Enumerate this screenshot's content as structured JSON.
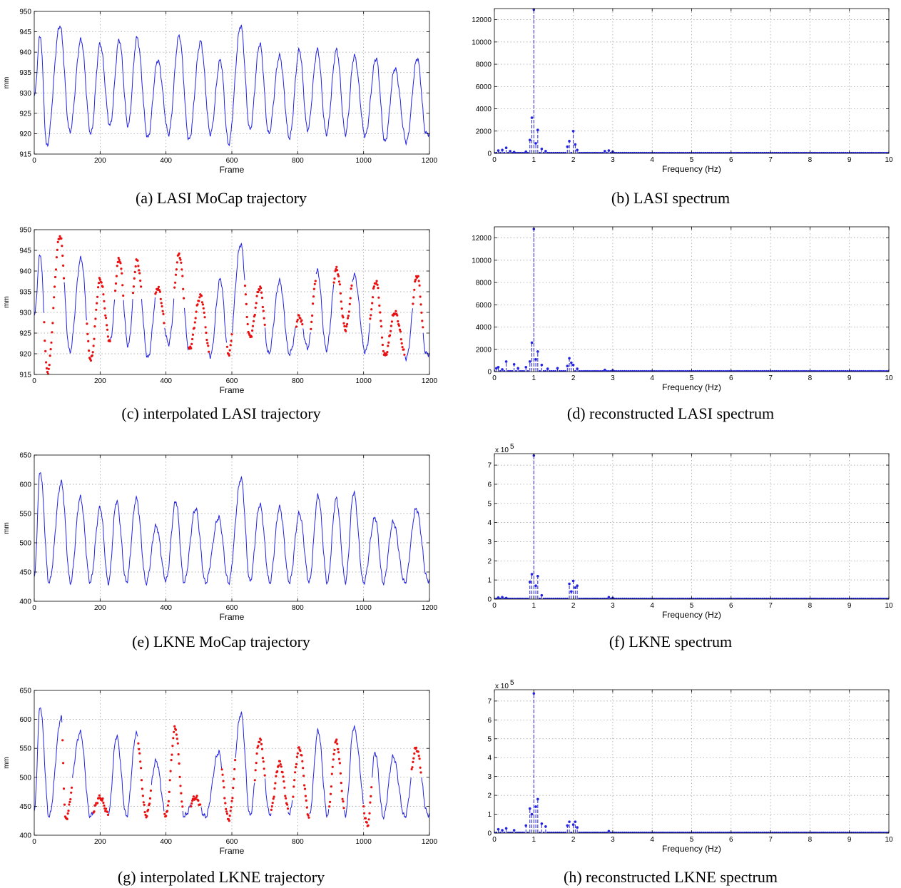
{
  "chart_data": [
    {
      "id": "a",
      "type": "line",
      "caption": "(a) LASI MoCap trajectory",
      "xlabel": "Frame",
      "ylabel": "mm",
      "xlim": [
        0,
        1200
      ],
      "ylim": [
        915,
        950
      ],
      "xticks": [
        0,
        200,
        400,
        600,
        800,
        1000,
        1200
      ],
      "yticks": [
        915,
        920,
        925,
        930,
        935,
        940,
        945,
        950
      ],
      "grid": true,
      "series_color": "#2323e0",
      "peaks": [
        [
          0,
          929
        ],
        [
          18,
          944
        ],
        [
          78,
          946.5
        ],
        [
          142,
          943
        ],
        [
          200,
          942
        ],
        [
          258,
          943
        ],
        [
          312,
          943.5
        ],
        [
          375,
          938
        ],
        [
          440,
          944
        ],
        [
          505,
          942.5
        ],
        [
          565,
          938
        ],
        [
          627,
          946.5
        ],
        [
          685,
          942
        ],
        [
          745,
          939
        ],
        [
          805,
          940.5
        ],
        [
          860,
          940.5
        ],
        [
          918,
          940.5
        ],
        [
          972,
          939
        ],
        [
          1038,
          938.5
        ],
        [
          1095,
          936
        ],
        [
          1163,
          938.5
        ]
      ],
      "troughs": [
        [
          38,
          917
        ],
        [
          108,
          920.5
        ],
        [
          172,
          920
        ],
        [
          230,
          922
        ],
        [
          285,
          922
        ],
        [
          345,
          919
        ],
        [
          408,
          920
        ],
        [
          470,
          918.5
        ],
        [
          535,
          920
        ],
        [
          590,
          917.5
        ],
        [
          655,
          921
        ],
        [
          712,
          920
        ],
        [
          775,
          919
        ],
        [
          830,
          921
        ],
        [
          887,
          920
        ],
        [
          945,
          920
        ],
        [
          1005,
          919.5
        ],
        [
          1065,
          918
        ],
        [
          1130,
          918
        ],
        [
          1190,
          920
        ]
      ]
    },
    {
      "id": "b",
      "type": "stem",
      "caption": "(b) LASI spectrum",
      "xlabel": "Frequency (Hz)",
      "ylabel": "",
      "xlim": [
        0,
        10
      ],
      "ylim": [
        0,
        13000
      ],
      "xticks": [
        0,
        1,
        2,
        3,
        4,
        5,
        6,
        7,
        8,
        9,
        10
      ],
      "xticklabels": [
        "0",
        "1",
        "2",
        "3",
        "4",
        "5",
        "6",
        "7",
        "8",
        "9",
        "10"
      ],
      "yticks": [
        0,
        2000,
        4000,
        6000,
        8000,
        10000,
        12000
      ],
      "yticklabels": [
        "0",
        "2000",
        "4000",
        "6000",
        "8000",
        "10000",
        "12000"
      ],
      "scale_label": "",
      "grid": true,
      "series_color": "#2323e0",
      "stems": [
        [
          0.1,
          250
        ],
        [
          0.2,
          300
        ],
        [
          0.3,
          500
        ],
        [
          0.4,
          200
        ],
        [
          0.5,
          120
        ],
        [
          0.8,
          150
        ],
        [
          0.9,
          1200
        ],
        [
          0.95,
          3200
        ],
        [
          1.0,
          12900
        ],
        [
          1.05,
          900
        ],
        [
          1.1,
          2100
        ],
        [
          1.2,
          400
        ],
        [
          1.3,
          200
        ],
        [
          1.85,
          600
        ],
        [
          1.9,
          1100
        ],
        [
          2.0,
          2000
        ],
        [
          2.05,
          800
        ],
        [
          2.1,
          300
        ],
        [
          2.8,
          200
        ],
        [
          2.9,
          250
        ],
        [
          3.0,
          150
        ]
      ]
    },
    {
      "id": "c",
      "type": "line",
      "caption": "(c) interpolated LASI trajectory",
      "xlabel": "Frame",
      "ylabel": "mm",
      "xlim": [
        0,
        1200
      ],
      "ylim": [
        915,
        950
      ],
      "xticks": [
        0,
        200,
        400,
        600,
        800,
        1000,
        1200
      ],
      "yticks": [
        915,
        920,
        925,
        930,
        935,
        940,
        945,
        950
      ],
      "grid": true,
      "series_color": "#2323e0",
      "interp_color": "#e81010",
      "peaks": [
        [
          0,
          929
        ],
        [
          18,
          944
        ],
        [
          78,
          948.5
        ],
        [
          142,
          943
        ],
        [
          200,
          938
        ],
        [
          258,
          943
        ],
        [
          312,
          942.5
        ],
        [
          375,
          936
        ],
        [
          440,
          944
        ],
        [
          505,
          934
        ],
        [
          565,
          938
        ],
        [
          627,
          946.5
        ],
        [
          685,
          936
        ],
        [
          745,
          937.5
        ],
        [
          805,
          929
        ],
        [
          860,
          940
        ],
        [
          918,
          940.5
        ],
        [
          972,
          939
        ],
        [
          1038,
          937.5
        ],
        [
          1095,
          930
        ],
        [
          1163,
          939
        ]
      ],
      "troughs": [
        [
          40,
          915.5
        ],
        [
          108,
          920.5
        ],
        [
          172,
          918.5
        ],
        [
          230,
          923
        ],
        [
          285,
          922
        ],
        [
          345,
          919
        ],
        [
          408,
          922.5
        ],
        [
          470,
          921
        ],
        [
          535,
          919.5
        ],
        [
          590,
          920
        ],
        [
          655,
          924
        ],
        [
          712,
          920
        ],
        [
          775,
          920
        ],
        [
          830,
          921.5
        ],
        [
          887,
          921
        ],
        [
          945,
          926
        ],
        [
          1005,
          920.5
        ],
        [
          1065,
          919.5
        ],
        [
          1130,
          919
        ],
        [
          1190,
          920
        ]
      ],
      "gaps": [
        [
          30,
          90
        ],
        [
          160,
          230
        ],
        [
          245,
          270
        ],
        [
          300,
          325
        ],
        [
          368,
          395
        ],
        [
          425,
          455
        ],
        [
          470,
          530
        ],
        [
          585,
          600
        ],
        [
          640,
          700
        ],
        [
          795,
          815
        ],
        [
          840,
          855
        ],
        [
          910,
          965
        ],
        [
          1020,
          1045
        ],
        [
          1045,
          1125
        ],
        [
          1150,
          1180
        ]
      ]
    },
    {
      "id": "d",
      "type": "stem",
      "caption": "(d) reconstructed LASI spectrum",
      "xlabel": "Frequency (Hz)",
      "ylabel": "",
      "xlim": [
        0,
        10
      ],
      "ylim": [
        0,
        13000
      ],
      "xticks": [
        0,
        1,
        2,
        3,
        4,
        5,
        6,
        7,
        8,
        9,
        10
      ],
      "xticklabels": [
        "0",
        "1",
        "2",
        "3",
        "4",
        "5",
        "6",
        "7",
        "8",
        "9",
        "10"
      ],
      "yticks": [
        0,
        2000,
        4000,
        6000,
        8000,
        10000,
        12000
      ],
      "yticklabels": [
        "0",
        "2000",
        "4000",
        "6000",
        "8000",
        "10000",
        "12000"
      ],
      "scale_label": "",
      "grid": true,
      "series_color": "#2323e0",
      "stems": [
        [
          0.05,
          300
        ],
        [
          0.1,
          400
        ],
        [
          0.2,
          200
        ],
        [
          0.3,
          900
        ],
        [
          0.5,
          650
        ],
        [
          0.6,
          300
        ],
        [
          0.8,
          400
        ],
        [
          0.9,
          900
        ],
        [
          0.95,
          2600
        ],
        [
          1.0,
          12800
        ],
        [
          1.05,
          1100
        ],
        [
          1.1,
          1800
        ],
        [
          1.2,
          600
        ],
        [
          1.35,
          250
        ],
        [
          1.6,
          300
        ],
        [
          1.85,
          500
        ],
        [
          1.9,
          1200
        ],
        [
          1.95,
          800
        ],
        [
          2.0,
          600
        ],
        [
          2.1,
          250
        ],
        [
          2.8,
          150
        ],
        [
          3.0,
          100
        ]
      ]
    },
    {
      "id": "e",
      "type": "line",
      "caption": "(e) LKNE MoCap trajectory",
      "xlabel": "Frame",
      "ylabel": "mm",
      "xlim": [
        0,
        1200
      ],
      "ylim": [
        400,
        650
      ],
      "xticks": [
        0,
        200,
        400,
        600,
        800,
        1000,
        1200
      ],
      "yticks": [
        400,
        450,
        500,
        550,
        600,
        650
      ],
      "grid": true,
      "series_color": "#2323e0",
      "peaks": [
        [
          18,
          622
        ],
        [
          82,
          603
        ],
        [
          140,
          577
        ],
        [
          200,
          560
        ],
        [
          250,
          571
        ],
        [
          310,
          575
        ],
        [
          370,
          528
        ],
        [
          430,
          571
        ],
        [
          490,
          558
        ],
        [
          560,
          543
        ],
        [
          628,
          610
        ],
        [
          685,
          565
        ],
        [
          745,
          560
        ],
        [
          805,
          550
        ],
        [
          862,
          580
        ],
        [
          917,
          575
        ],
        [
          970,
          586
        ],
        [
          1035,
          543
        ],
        [
          1090,
          535
        ],
        [
          1160,
          558
        ]
      ],
      "troughs": [
        [
          0,
          440
        ],
        [
          45,
          432
        ],
        [
          110,
          432
        ],
        [
          170,
          433
        ],
        [
          225,
          432
        ],
        [
          280,
          433
        ],
        [
          340,
          432
        ],
        [
          400,
          436
        ],
        [
          455,
          433
        ],
        [
          520,
          432
        ],
        [
          590,
          432
        ],
        [
          655,
          434
        ],
        [
          715,
          432
        ],
        [
          775,
          433
        ],
        [
          835,
          433
        ],
        [
          890,
          432
        ],
        [
          945,
          434
        ],
        [
          1000,
          432
        ],
        [
          1060,
          432
        ],
        [
          1125,
          432
        ],
        [
          1195,
          436
        ]
      ]
    },
    {
      "id": "f",
      "type": "stem",
      "caption": "(f) LKNE spectrum",
      "xlabel": "Frequency (Hz)",
      "ylabel": "",
      "xlim": [
        0,
        10
      ],
      "ylim": [
        0,
        7.6
      ],
      "xticks": [
        0,
        1,
        2,
        3,
        4,
        5,
        6,
        7,
        8,
        9,
        10
      ],
      "xticklabels": [
        "0",
        "1",
        "2",
        "3",
        "4",
        "5",
        "6",
        "7",
        "8",
        "9",
        "10"
      ],
      "yticks": [
        0,
        1,
        2,
        3,
        4,
        5,
        6,
        7
      ],
      "yticklabels": [
        "0",
        "1",
        "2",
        "3",
        "4",
        "5",
        "6",
        "7"
      ],
      "scale_label": "x 10",
      "scale_exp": "5",
      "grid": true,
      "series_color": "#2323e0",
      "stems": [
        [
          0.1,
          0.08
        ],
        [
          0.2,
          0.1
        ],
        [
          0.3,
          0.06
        ],
        [
          0.9,
          0.9
        ],
        [
          0.95,
          1.3
        ],
        [
          1.0,
          7.5
        ],
        [
          1.05,
          0.7
        ],
        [
          1.1,
          1.2
        ],
        [
          1.2,
          0.2
        ],
        [
          1.9,
          0.8
        ],
        [
          1.95,
          0.4
        ],
        [
          2.0,
          0.95
        ],
        [
          2.05,
          0.6
        ],
        [
          2.1,
          0.7
        ],
        [
          2.9,
          0.1
        ],
        [
          3.0,
          0.06
        ]
      ]
    },
    {
      "id": "g",
      "type": "line",
      "caption": "(g) interpolated LKNE trajectory",
      "xlabel": "Frame",
      "ylabel": "mm",
      "xlim": [
        0,
        1200
      ],
      "ylim": [
        400,
        650
      ],
      "xticks": [
        0,
        200,
        400,
        600,
        800,
        1000,
        1200
      ],
      "yticks": [
        400,
        450,
        500,
        550,
        600,
        650
      ],
      "grid": true,
      "series_color": "#2323e0",
      "interp_color": "#e81010",
      "peaks": [
        [
          18,
          622
        ],
        [
          82,
          603
        ],
        [
          140,
          577
        ],
        [
          200,
          465
        ],
        [
          250,
          571
        ],
        [
          310,
          575
        ],
        [
          370,
          528
        ],
        [
          428,
          585
        ],
        [
          490,
          465
        ],
        [
          560,
          543
        ],
        [
          628,
          610
        ],
        [
          685,
          565
        ],
        [
          745,
          525
        ],
        [
          805,
          550
        ],
        [
          862,
          580
        ],
        [
          917,
          562
        ],
        [
          970,
          586
        ],
        [
          1035,
          543
        ],
        [
          1090,
          535
        ],
        [
          1160,
          550
        ]
      ],
      "troughs": [
        [
          0,
          440
        ],
        [
          45,
          432
        ],
        [
          95,
          428
        ],
        [
          170,
          433
        ],
        [
          225,
          437
        ],
        [
          280,
          433
        ],
        [
          340,
          434
        ],
        [
          400,
          434
        ],
        [
          455,
          433
        ],
        [
          520,
          432
        ],
        [
          590,
          428
        ],
        [
          655,
          434
        ],
        [
          715,
          436
        ],
        [
          775,
          438
        ],
        [
          835,
          432
        ],
        [
          890,
          434
        ],
        [
          945,
          436
        ],
        [
          1012,
          418
        ],
        [
          1060,
          432
        ],
        [
          1125,
          432
        ],
        [
          1195,
          436
        ]
      ],
      "gaps": [
        [
          85,
          115
        ],
        [
          180,
          225
        ],
        [
          315,
          355
        ],
        [
          395,
          450
        ],
        [
          475,
          505
        ],
        [
          570,
          610
        ],
        [
          670,
          700
        ],
        [
          720,
          770
        ],
        [
          785,
          835
        ],
        [
          895,
          940
        ],
        [
          1000,
          1025
        ],
        [
          1145,
          1175
        ]
      ]
    },
    {
      "id": "h",
      "type": "stem",
      "caption": "(h) reconstructed LKNE spectrum",
      "xlabel": "Frequency (Hz)",
      "ylabel": "",
      "xlim": [
        0,
        10
      ],
      "ylim": [
        0,
        7.6
      ],
      "xticks": [
        0,
        1,
        2,
        3,
        4,
        5,
        6,
        7,
        8,
        9,
        10
      ],
      "xticklabels": [
        "0",
        "1",
        "2",
        "3",
        "4",
        "5",
        "6",
        "7",
        "8",
        "9",
        "10"
      ],
      "yticks": [
        0,
        1,
        2,
        3,
        4,
        5,
        6,
        7
      ],
      "yticklabels": [
        "0",
        "1",
        "2",
        "3",
        "4",
        "5",
        "6",
        "7"
      ],
      "scale_label": "x 10",
      "scale_exp": "5",
      "grid": true,
      "series_color": "#2323e0",
      "stems": [
        [
          0.1,
          0.2
        ],
        [
          0.2,
          0.15
        ],
        [
          0.3,
          0.25
        ],
        [
          0.5,
          0.15
        ],
        [
          0.8,
          0.4
        ],
        [
          0.9,
          1.3
        ],
        [
          0.95,
          1.0
        ],
        [
          1.0,
          7.4
        ],
        [
          1.05,
          1.4
        ],
        [
          1.1,
          1.8
        ],
        [
          1.2,
          0.5
        ],
        [
          1.3,
          0.35
        ],
        [
          1.85,
          0.4
        ],
        [
          1.9,
          0.6
        ],
        [
          2.0,
          0.45
        ],
        [
          2.05,
          0.6
        ],
        [
          2.1,
          0.3
        ],
        [
          2.9,
          0.1
        ]
      ]
    }
  ]
}
